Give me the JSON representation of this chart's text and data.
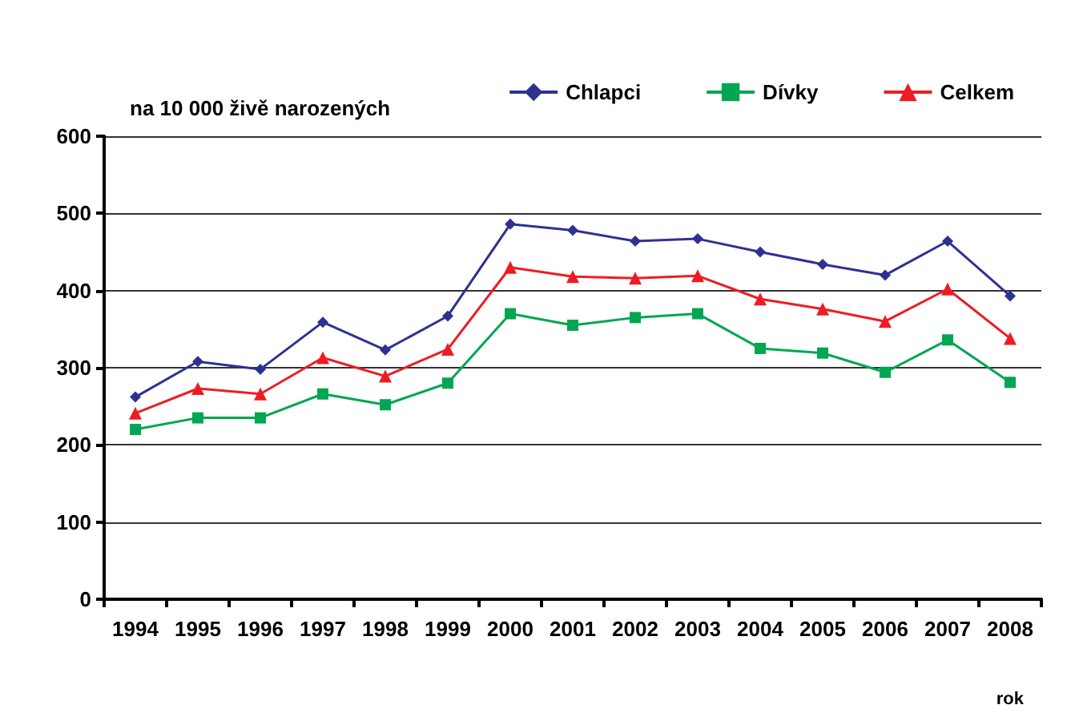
{
  "chart_data": {
    "type": "line",
    "ylabel": "na 10 000 živě narozených",
    "xlabel": "rok",
    "categories": [
      "1994",
      "1995",
      "1996",
      "1997",
      "1998",
      "1999",
      "2000",
      "2001",
      "2002",
      "2003",
      "2004",
      "2005",
      "2006",
      "2007",
      "2008"
    ],
    "series": [
      {
        "name": "Chlapci",
        "color": "#2e3192",
        "marker": "diamond",
        "values": [
          262,
          308,
          298,
          359,
          323,
          367,
          486,
          478,
          464,
          467,
          450,
          434,
          420,
          464,
          393
        ]
      },
      {
        "name": "Dívky",
        "color": "#00a651",
        "marker": "square",
        "values": [
          220,
          235,
          235,
          266,
          252,
          280,
          370,
          355,
          365,
          370,
          325,
          319,
          294,
          336,
          281
        ]
      },
      {
        "name": "Celkem",
        "color": "#ed1c24",
        "marker": "triangle",
        "values": [
          241,
          273,
          266,
          313,
          289,
          324,
          430,
          418,
          416,
          419,
          389,
          376,
          360,
          402,
          338
        ]
      }
    ],
    "ylim": [
      0,
      600
    ],
    "yticks": [
      0,
      100,
      200,
      300,
      400,
      500,
      600
    ],
    "grid": "y",
    "legend": "top right",
    "line_style": "solid"
  }
}
